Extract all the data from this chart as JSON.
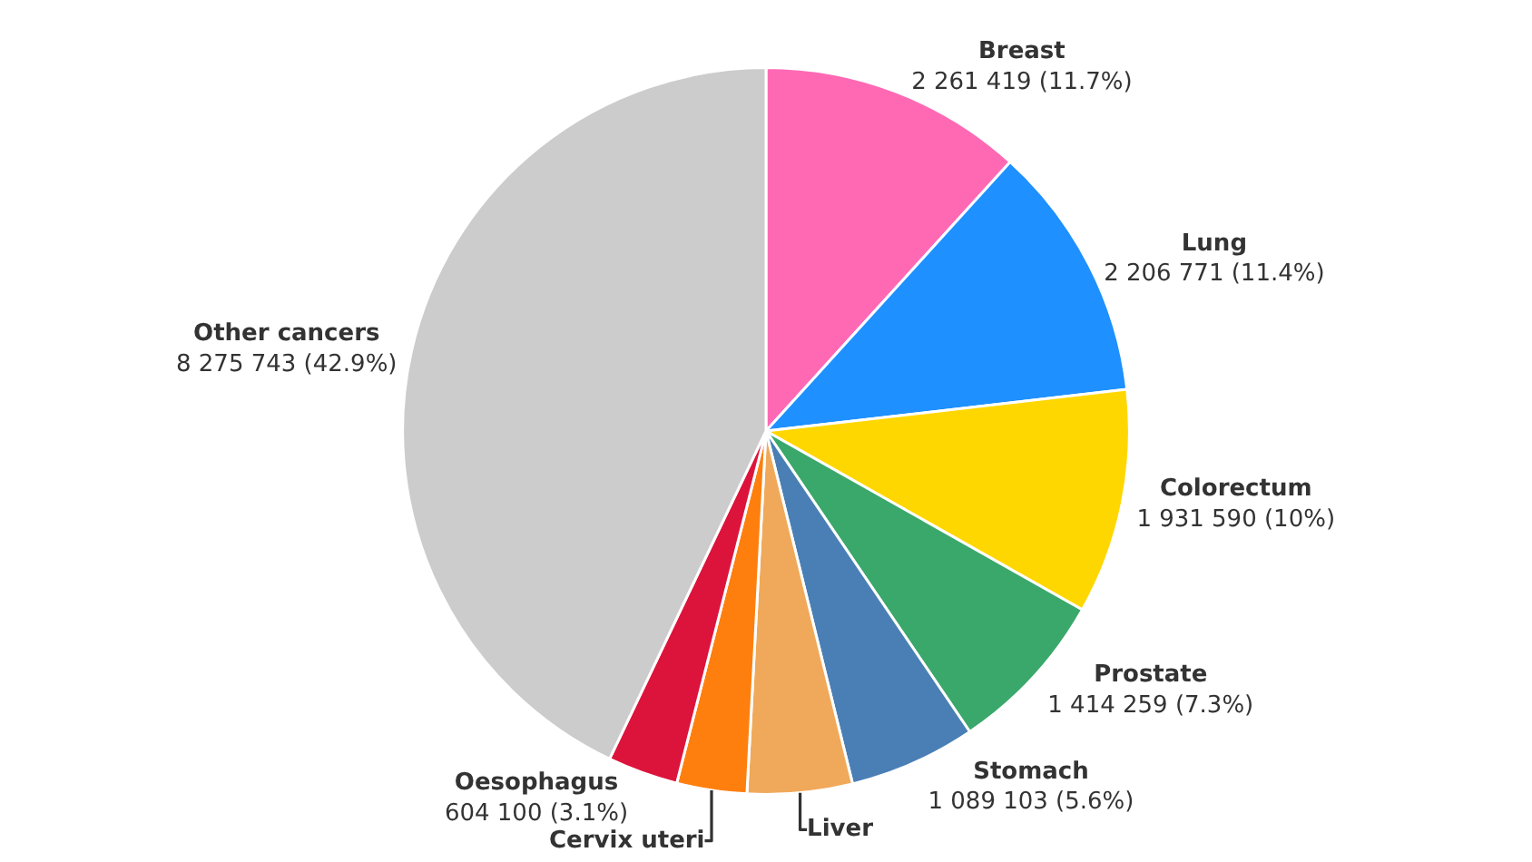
{
  "chart_data": {
    "type": "pie",
    "categories": [
      "Breast",
      "Lung",
      "Colorectum",
      "Prostate",
      "Stomach",
      "Liver",
      "Cervix uteri",
      "Oesophagus",
      "Other cancers"
    ],
    "values": [
      2261419,
      2206771,
      1931590,
      1414259,
      1089103,
      900000,
      600000,
      604100,
      8275743
    ],
    "value_labels": [
      "2 261 419 (11.7%)",
      "2 206 771 (11.4%)",
      "1 931 590 (10%)",
      "1 414 259 (7.3%)",
      "1 089 103 (5.6%)",
      null,
      null,
      "604 100 (3.1%)",
      "8 275 743 (42.9%)"
    ],
    "colors": [
      "#ff69b4",
      "#1e90ff",
      "#ffd700",
      "#3aa86b",
      "#4a7fb5",
      "#f0a95a",
      "#ff7f0e",
      "#dc143c",
      "#cccccc"
    ],
    "legend": false
  }
}
